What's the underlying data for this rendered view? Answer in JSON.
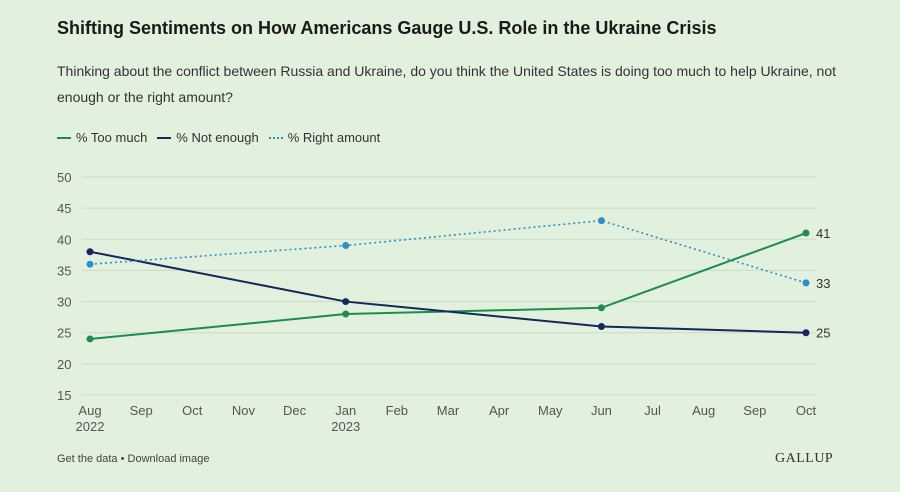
{
  "header": {
    "title": "Shifting Sentiments on How Americans Gauge U.S. Role in the Ukraine Crisis",
    "subtitle": "Thinking about the conflict between Russia and Ukraine, do you think the United States is doing too much to help Ukraine, not enough or the right amount?"
  },
  "footer": {
    "get_data": "Get the data",
    "separator": " • ",
    "download": "Download image",
    "brand": "GALLUP"
  },
  "colors": {
    "background": "#e2f0de",
    "too_much": "#1e8c4e",
    "not_enough": "#14285c",
    "right_amount": "#2e8fc4"
  },
  "chart_data": {
    "type": "line",
    "title": "Shifting Sentiments on How Americans Gauge U.S. Role in the Ukraine Crisis",
    "xlabel": "",
    "ylabel": "",
    "ylim": [
      15,
      50
    ],
    "yticks": [
      15,
      20,
      25,
      30,
      35,
      40,
      45,
      50
    ],
    "grid": true,
    "legend_position": "top-left",
    "x_ticks": [
      {
        "month": "Aug",
        "year": "2022"
      },
      {
        "month": "Sep",
        "year": ""
      },
      {
        "month": "Oct",
        "year": ""
      },
      {
        "month": "Nov",
        "year": ""
      },
      {
        "month": "Dec",
        "year": ""
      },
      {
        "month": "Jan",
        "year": "2023"
      },
      {
        "month": "Feb",
        "year": ""
      },
      {
        "month": "Mar",
        "year": ""
      },
      {
        "month": "Apr",
        "year": ""
      },
      {
        "month": "May",
        "year": ""
      },
      {
        "month": "Jun",
        "year": ""
      },
      {
        "month": "Jul",
        "year": ""
      },
      {
        "month": "Aug",
        "year": ""
      },
      {
        "month": "Sep",
        "year": ""
      },
      {
        "month": "Oct",
        "year": ""
      }
    ],
    "x": [
      "2022-08",
      "2023-01",
      "2023-06",
      "2023-10"
    ],
    "series": [
      {
        "name": "% Too much",
        "key": "too_much",
        "style": "solid",
        "values": [
          24,
          28,
          29,
          41
        ],
        "end_label": "41"
      },
      {
        "name": "% Not enough",
        "key": "not_enough",
        "style": "solid",
        "values": [
          38,
          30,
          26,
          25
        ],
        "end_label": "25"
      },
      {
        "name": "% Right amount",
        "key": "right_amount",
        "style": "dotted",
        "values": [
          36,
          39,
          43,
          33
        ],
        "end_label": "33"
      }
    ]
  }
}
